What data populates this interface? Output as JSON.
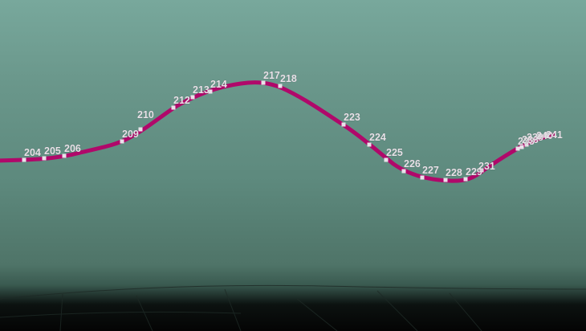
{
  "colors": {
    "track": "#b0086a",
    "marker": "#e9e2ea",
    "label": "#e8e2e8",
    "sky_top": "#78a89c",
    "ground": "#040404"
  },
  "track": {
    "waypoints": [
      {
        "id": "204"
      },
      {
        "id": "205"
      },
      {
        "id": "206"
      },
      {
        "id": "209"
      },
      {
        "id": "210"
      },
      {
        "id": "212"
      },
      {
        "id": "213"
      },
      {
        "id": "214"
      },
      {
        "id": "217"
      },
      {
        "id": "218"
      },
      {
        "id": "223"
      },
      {
        "id": "224"
      },
      {
        "id": "225"
      },
      {
        "id": "226"
      },
      {
        "id": "227"
      },
      {
        "id": "228"
      },
      {
        "id": "229"
      },
      {
        "id": "231"
      },
      {
        "id": "233"
      },
      {
        "id": "236"
      },
      {
        "id": "238"
      },
      {
        "id": "240"
      },
      {
        "id": "241"
      }
    ]
  }
}
